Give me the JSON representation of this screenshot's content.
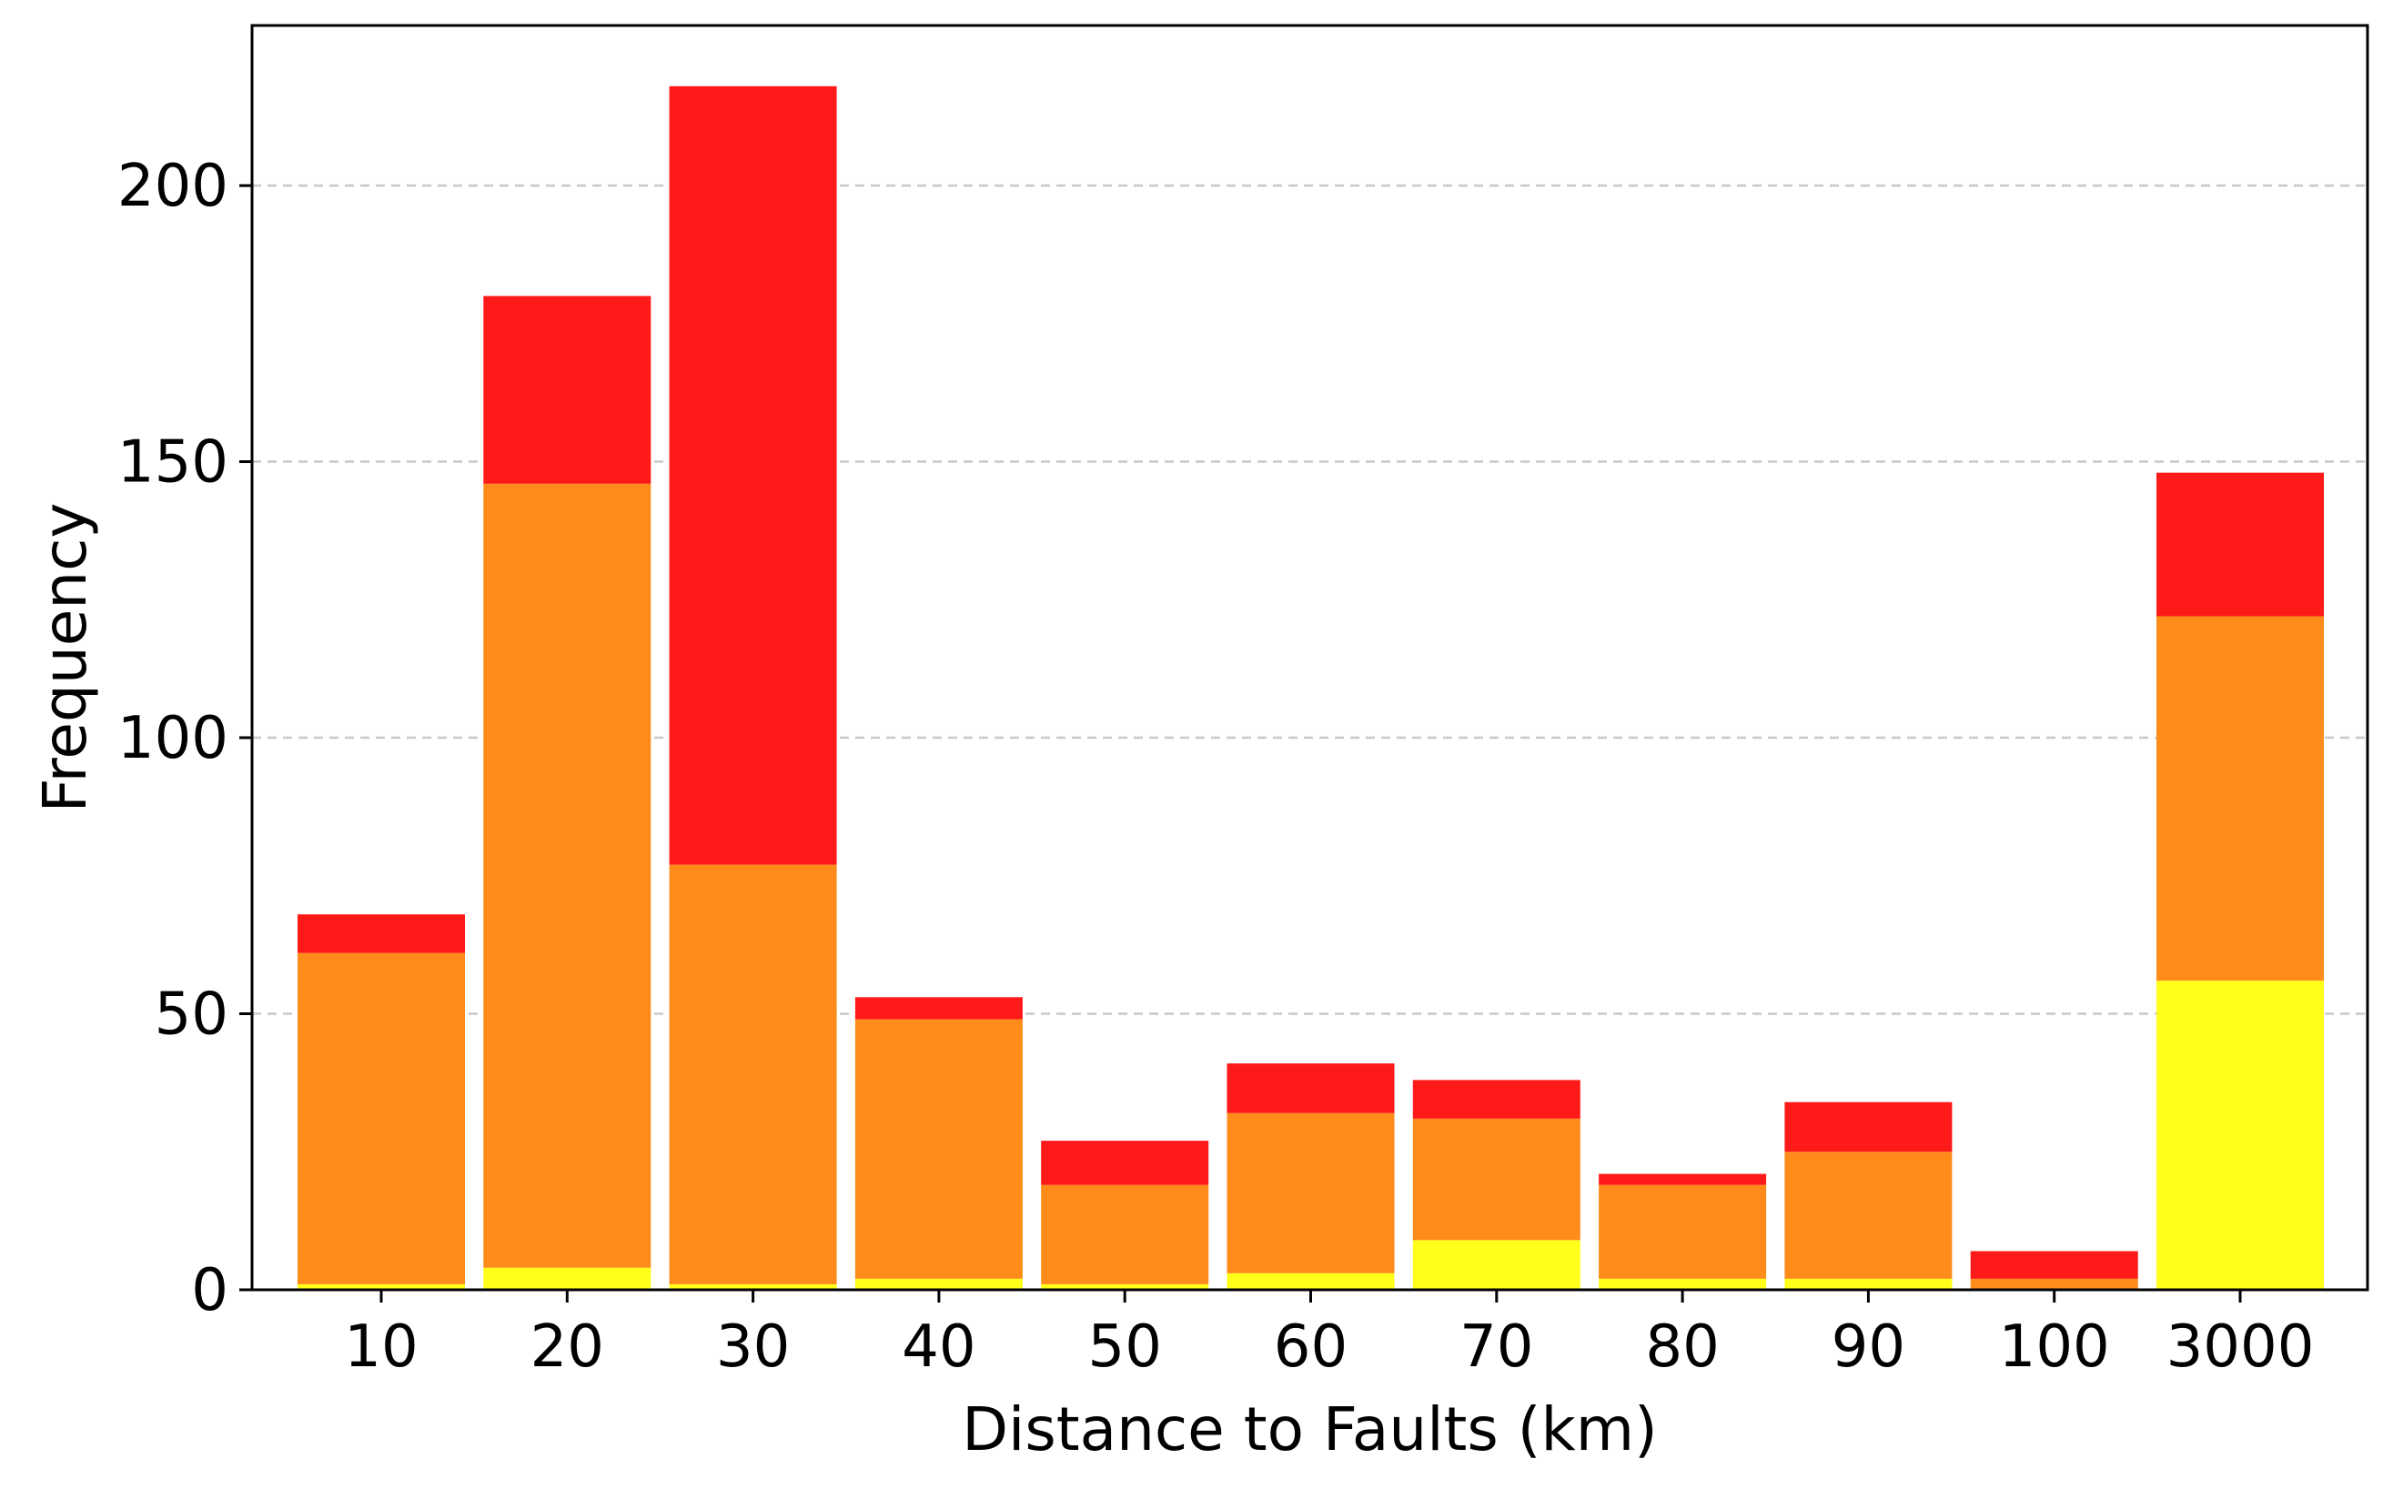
{
  "chart_data": {
    "type": "bar",
    "stacked": true,
    "xlabel": "Distance to Faults (km)",
    "ylabel": "Frequency",
    "categories": [
      "10",
      "20",
      "30",
      "40",
      "50",
      "60",
      "70",
      "80",
      "90",
      "100",
      "3000"
    ],
    "series": [
      {
        "color": "#ffff1a",
        "values": [
          1,
          4,
          1,
          2,
          1,
          3,
          9,
          2,
          2,
          0,
          56
        ]
      },
      {
        "color": "#ff8c1a",
        "values": [
          60,
          142,
          76,
          47,
          18,
          29,
          22,
          17,
          23,
          2,
          66
        ]
      },
      {
        "color": "#ff1a1a",
        "values": [
          7,
          34,
          141,
          4,
          8,
          9,
          7,
          2,
          9,
          5,
          26
        ]
      }
    ],
    "ylim": [
      0,
      229
    ],
    "yticks": [
      0,
      50,
      100,
      150,
      200
    ],
    "grid": {
      "y": true,
      "x": false,
      "style": "dashed",
      "color": "#c8c8c8"
    }
  }
}
